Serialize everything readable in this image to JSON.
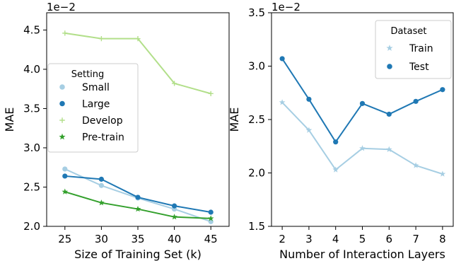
{
  "chart_data": [
    {
      "type": "line",
      "xlabel": "Size of Training Set (k)",
      "ylabel": "MAE",
      "y_multiplier": "1e−2",
      "x": [
        25,
        30,
        35,
        40,
        45
      ],
      "xticks": [
        "25",
        "30",
        "35",
        "40",
        "45"
      ],
      "yticks": [
        "2.0",
        "2.5",
        "3.0",
        "3.5",
        "4.0",
        "4.5"
      ],
      "xlim": [
        22.5,
        47.5
      ],
      "ylim": [
        2.0,
        4.72
      ],
      "grid": false,
      "legend": {
        "title": "Setting",
        "placement": "center-left",
        "entries": [
          "Small",
          "Large",
          "Develop",
          "Pre-train"
        ]
      },
      "series": [
        {
          "name": "Small",
          "color": "#a6cee3",
          "marker": "circle",
          "values": [
            2.73,
            2.52,
            2.36,
            2.22,
            2.06
          ]
        },
        {
          "name": "Large",
          "color": "#1f78b4",
          "marker": "circle",
          "values": [
            2.64,
            2.6,
            2.37,
            2.26,
            2.18
          ]
        },
        {
          "name": "Develop",
          "color": "#b2df8a",
          "marker": "plus",
          "values": [
            4.46,
            4.39,
            4.39,
            3.82,
            3.69
          ]
        },
        {
          "name": "Pre-train",
          "color": "#33a02c",
          "marker": "star",
          "values": [
            2.44,
            2.3,
            2.22,
            2.12,
            2.1
          ]
        }
      ]
    },
    {
      "type": "line",
      "xlabel": "Number of Interaction Layers",
      "ylabel": "MAE",
      "y_multiplier": "1e−2",
      "x": [
        2,
        3,
        4,
        5,
        6,
        7,
        8
      ],
      "xticks": [
        "2",
        "3",
        "4",
        "5",
        "6",
        "7",
        "8"
      ],
      "yticks": [
        "1.5",
        "2.0",
        "2.5",
        "3.0",
        "3.5"
      ],
      "xlim": [
        1.6,
        8.4
      ],
      "ylim": [
        1.5,
        3.5
      ],
      "grid": false,
      "legend": {
        "title": "Dataset",
        "placement": "top-right",
        "entries": [
          "Train",
          "Test"
        ]
      },
      "series": [
        {
          "name": "Train",
          "color": "#a6cee3",
          "marker": "star",
          "values": [
            2.66,
            2.4,
            2.03,
            2.23,
            2.22,
            2.07,
            1.99
          ]
        },
        {
          "name": "Test",
          "color": "#1f78b4",
          "marker": "circle",
          "values": [
            3.07,
            2.69,
            2.29,
            2.65,
            2.55,
            2.67,
            2.78
          ]
        }
      ]
    }
  ]
}
